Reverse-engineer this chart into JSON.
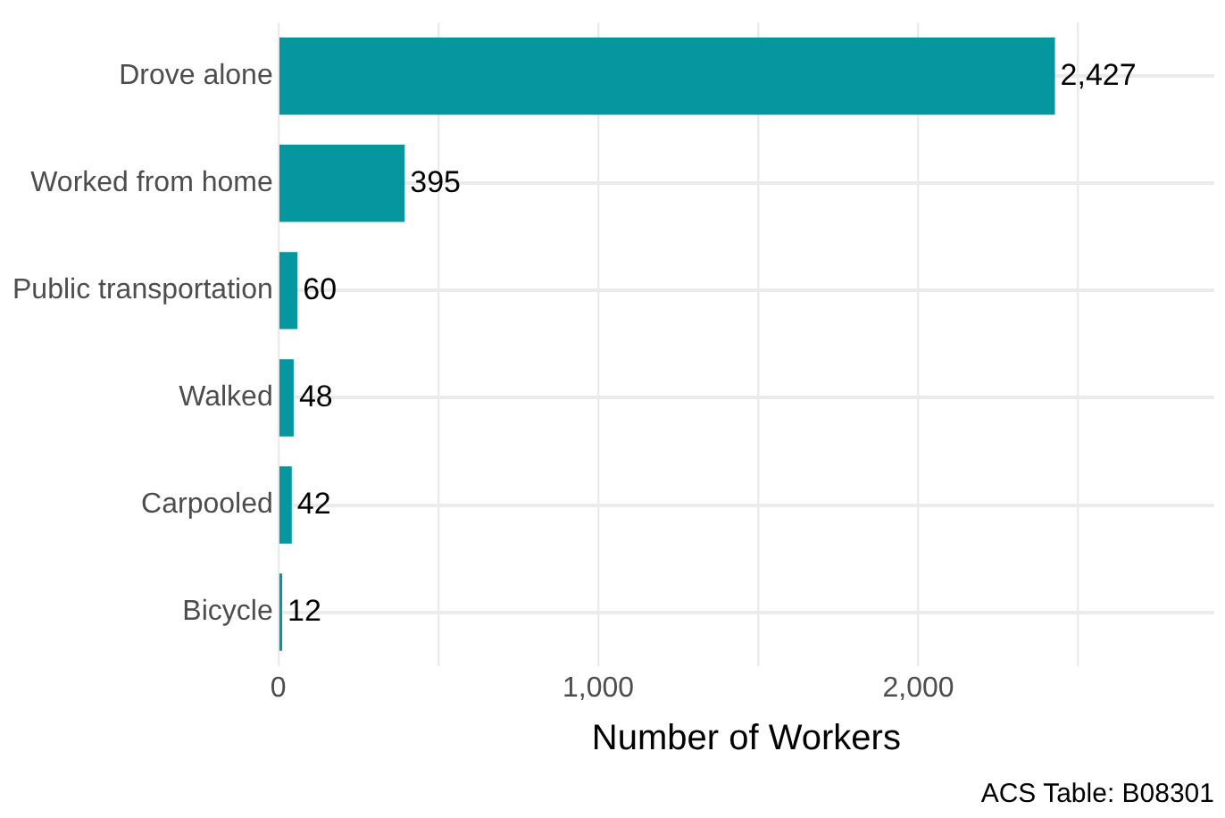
{
  "chart_data": {
    "type": "bar",
    "orientation": "horizontal",
    "categories": [
      "Drove alone",
      "Worked from home",
      "Public transportation",
      "Walked",
      "Carpooled",
      "Bicycle"
    ],
    "values": [
      2427,
      395,
      60,
      48,
      42,
      12
    ],
    "color": "#0596a0",
    "xlim": [
      0,
      2925
    ],
    "xticks": [
      0,
      {
        "value": 500,
        "label": null
      },
      {
        "value": 1000,
        "label": "1,000"
      },
      {
        "value": 1500,
        "label": null
      },
      {
        "value": 2000,
        "label": "2,000"
      },
      {
        "value": 2500,
        "label": null
      }
    ],
    "xlabel": "Number of Workers",
    "annotations": [
      "ACS Table: B08301"
    ],
    "value_labels": [
      "2,427",
      "395",
      "60",
      "48",
      "42",
      "12"
    ],
    "grid": true,
    "legend": false
  }
}
